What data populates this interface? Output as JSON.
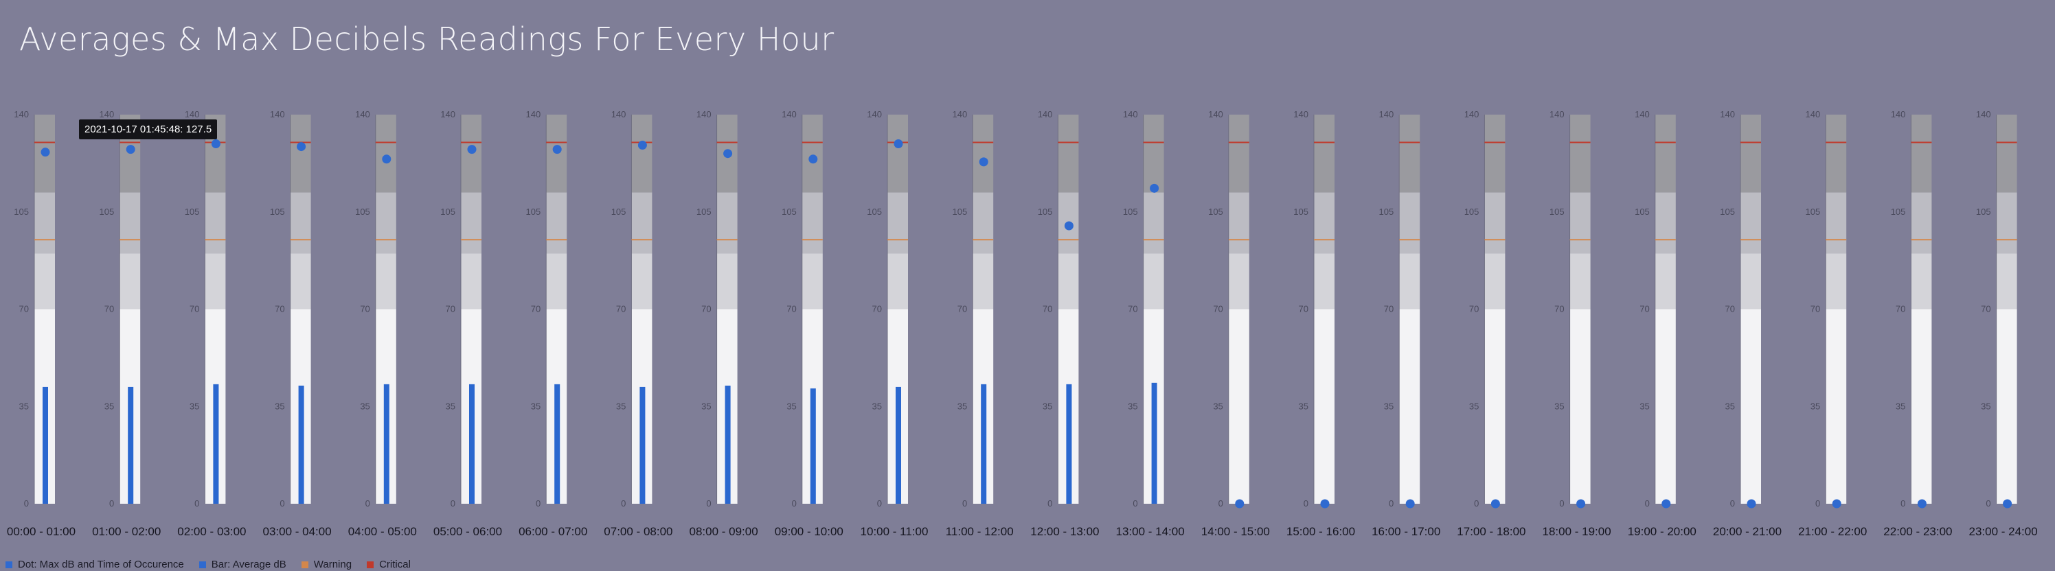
{
  "title": "Averages & Max Decibels Readings For Every Hour",
  "tooltip": {
    "text": "2021-10-17 01:45:48: 127.5"
  },
  "legend": [
    {
      "label": "Dot: Max dB and Time of Occurence",
      "color": "#2f6ad0"
    },
    {
      "label": "Bar: Average dB",
      "color": "#2f6ad0"
    },
    {
      "label": "Warning",
      "color": "#d4874a"
    },
    {
      "label": "Critical",
      "color": "#c0392b"
    }
  ],
  "colors": {
    "bar": "#2a67cf",
    "dot": "#2f6ad0",
    "warning": "#d4874a",
    "critical": "#c0392b",
    "band_low": "#f3f3f5",
    "band_mid1": "#d4d4d9",
    "band_mid2": "#bcbcc3",
    "band_high": "#9a9a9f"
  },
  "chart_data": {
    "type": "bar",
    "ylim": [
      0,
      140
    ],
    "yticks": [
      0,
      35,
      70,
      105,
      140
    ],
    "bands": [
      {
        "from": 0,
        "to": 70,
        "color": "#f3f3f5"
      },
      {
        "from": 70,
        "to": 90,
        "color": "#d4d4d9"
      },
      {
        "from": 90,
        "to": 112,
        "color": "#bcbcc3"
      },
      {
        "from": 112,
        "to": 140,
        "color": "#9a9a9f"
      }
    ],
    "warning": 95,
    "critical": 130,
    "categories": [
      "00:00 - 01:00",
      "01:00 - 02:00",
      "02:00 - 03:00",
      "03:00 - 04:00",
      "04:00 - 05:00",
      "05:00 - 06:00",
      "06:00 - 07:00",
      "07:00 - 08:00",
      "08:00 - 09:00",
      "09:00 - 10:00",
      "10:00 - 11:00",
      "11:00 - 12:00",
      "12:00 - 13:00",
      "13:00 - 14:00",
      "14:00 - 15:00",
      "15:00 - 16:00",
      "16:00 - 17:00",
      "17:00 - 18:00",
      "18:00 - 19:00",
      "19:00 - 20:00",
      "20:00 - 21:00",
      "21:00 - 22:00",
      "22:00 - 23:00",
      "23:00 - 24:00"
    ],
    "series": [
      {
        "name": "Bar: Average dB",
        "values": [
          42,
          42,
          43,
          42.5,
          43,
          43,
          43,
          42,
          42.5,
          41.5,
          42,
          43,
          43,
          43.5,
          0,
          0,
          0,
          0,
          0,
          0,
          0,
          0,
          0,
          0
        ]
      },
      {
        "name": "Dot: Max dB and Time of Occurence",
        "values": [
          126.5,
          127.5,
          129.5,
          128.5,
          124,
          127.5,
          127.5,
          129,
          126,
          124,
          129.5,
          123,
          100,
          113.5,
          0,
          0,
          0,
          0,
          0,
          0,
          0,
          0,
          0,
          0
        ]
      }
    ]
  }
}
